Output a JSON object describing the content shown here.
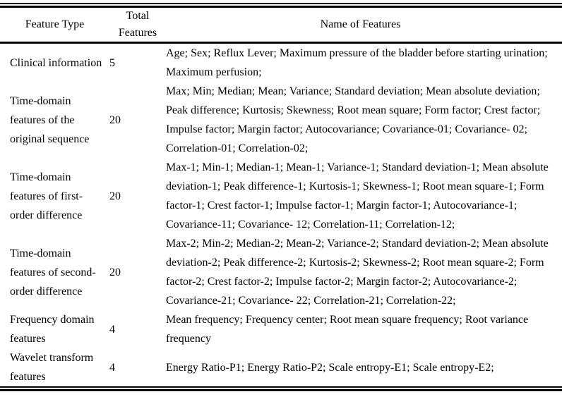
{
  "colors": {
    "text": "#000000",
    "rule": "#000000",
    "background": "#ffffff"
  },
  "table": {
    "header": {
      "feature_type": "Feature Type",
      "total_features": [
        "Total",
        "Features"
      ],
      "name_of_features": "Name of Features"
    },
    "rows": [
      {
        "feature_type": "Clinical information",
        "total": "5",
        "names": [
          "Age; Sex; Reflux Lever; Maximum pressure of the bladder before starting urination;",
          "Maximum perfusion;"
        ]
      },
      {
        "feature_type": [
          "Time-domain",
          "features of the",
          "original sequence"
        ],
        "total": "20",
        "names": [
          "Max; Min; Median; Mean; Variance; Standard deviation; Mean absolute deviation;",
          "Peak difference; Kurtosis; Skewness; Root mean square; Form factor; Crest factor;",
          "Impulse factor; Margin factor; Autocovariance; Covariance-01; Covariance- 02;",
          "Correlation-01; Correlation-02;"
        ]
      },
      {
        "feature_type": [
          "Time-domain",
          "features of first-",
          "order difference"
        ],
        "total": "20",
        "names": [
          "Max-1; Min-1; Median-1; Mean-1; Variance-1; Standard deviation-1; Mean absolute",
          "deviation-1; Peak difference-1; Kurtosis-1; Skewness-1; Root mean square-1; Form",
          "factor-1; Crest factor-1; Impulse factor-1; Margin factor-1; Autocovariance-1;",
          "Covariance-11; Covariance- 12; Correlation-11; Correlation-12;"
        ]
      },
      {
        "feature_type": [
          "Time-domain",
          "features of second-",
          "order difference"
        ],
        "total": "20",
        "names": [
          "Max-2; Min-2; Median-2; Mean-2; Variance-2; Standard deviation-2; Mean absolute",
          "deviation-2; Peak difference-2; Kurtosis-2; Skewness-2; Root mean square-2; Form",
          "factor-2; Crest factor-2; Impulse factor-2; Margin factor-2; Autocovariance-2;",
          "Covariance-21; Covariance- 22; Correlation-21; Correlation-22;"
        ]
      },
      {
        "feature_type": [
          "Frequency domain",
          "features"
        ],
        "total": "4",
        "names": [
          "Mean frequency; Frequency center; Root mean square frequency; Root variance",
          "frequency"
        ]
      },
      {
        "feature_type": [
          "Wavelet transform",
          "features"
        ],
        "total": "4",
        "names": [
          "Energy Ratio-P1; Energy Ratio-P2; Scale entropy-E1; Scale entropy-E2;"
        ]
      }
    ]
  }
}
